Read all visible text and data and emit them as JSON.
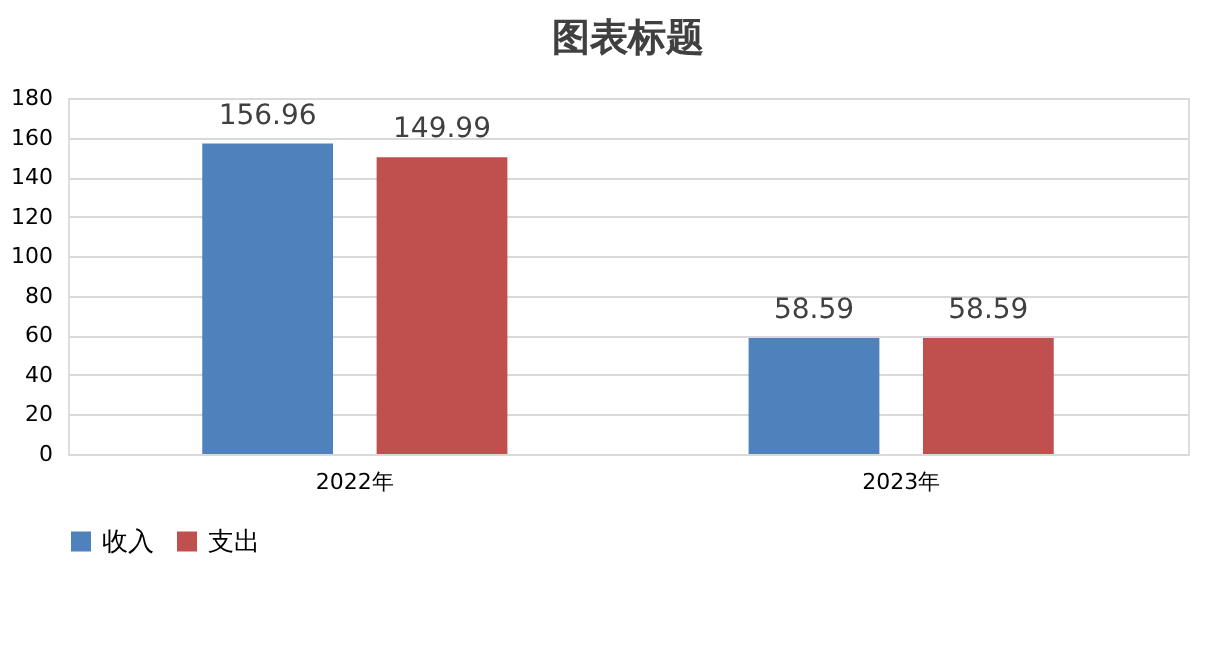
{
  "chart_data": {
    "type": "bar",
    "title": "图表标题",
    "categories": [
      "2022年",
      "2023年"
    ],
    "series": [
      {
        "name": "收入",
        "color": "#4f81bd",
        "values": [
          156.96,
          58.59
        ]
      },
      {
        "name": "支出",
        "color": "#c0504d",
        "values": [
          149.99,
          58.59
        ]
      }
    ],
    "ylim": [
      0,
      180
    ],
    "yticks": [
      0,
      20,
      40,
      60,
      80,
      100,
      120,
      140,
      160,
      180
    ],
    "grid": "y",
    "legend": "bottom",
    "data_labels": true
  }
}
